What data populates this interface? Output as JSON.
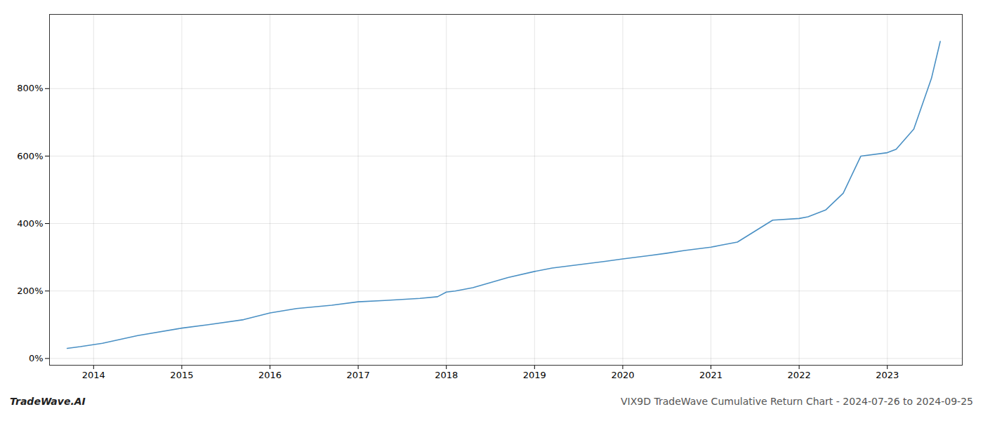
{
  "chart_data": {
    "type": "line",
    "x": [
      2013.7,
      2013.85,
      2014.1,
      2014.5,
      2015.0,
      2015.3,
      2015.7,
      2016.0,
      2016.3,
      2016.7,
      2017.0,
      2017.3,
      2017.7,
      2017.9,
      2018.0,
      2018.1,
      2018.3,
      2018.5,
      2018.7,
      2019.0,
      2019.2,
      2019.5,
      2019.8,
      2020.0,
      2020.3,
      2020.5,
      2020.7,
      2021.0,
      2021.1,
      2021.3,
      2021.7,
      2022.0,
      2022.1,
      2022.3,
      2022.5,
      2022.7,
      2023.0,
      2023.1,
      2023.3,
      2023.5,
      2023.6
    ],
    "values": [
      30,
      35,
      45,
      68,
      90,
      100,
      115,
      135,
      148,
      158,
      168,
      172,
      178,
      183,
      197,
      200,
      210,
      225,
      240,
      258,
      268,
      278,
      288,
      295,
      305,
      312,
      320,
      330,
      335,
      345,
      410,
      415,
      420,
      440,
      490,
      600,
      610,
      620,
      680,
      830,
      940
    ],
    "color": "#4a90c4",
    "xlim": [
      2013.5,
      2023.85
    ],
    "xticks": [
      2014,
      2015,
      2016,
      2017,
      2018,
      2019,
      2020,
      2021,
      2022,
      2023
    ],
    "ylim": [
      -20,
      1020
    ],
    "yticks": [
      {
        "value": 0,
        "label": "0%"
      },
      {
        "value": 200,
        "label": "200%"
      },
      {
        "value": 400,
        "label": "400%"
      },
      {
        "value": 600,
        "label": "600%"
      },
      {
        "value": 800,
        "label": "800%"
      }
    ],
    "grid": true,
    "annotations": [
      "TradeWave.AI",
      "VIX9D TradeWave Cumulative Return Chart - 2024-07-26 to 2024-09-25"
    ]
  }
}
